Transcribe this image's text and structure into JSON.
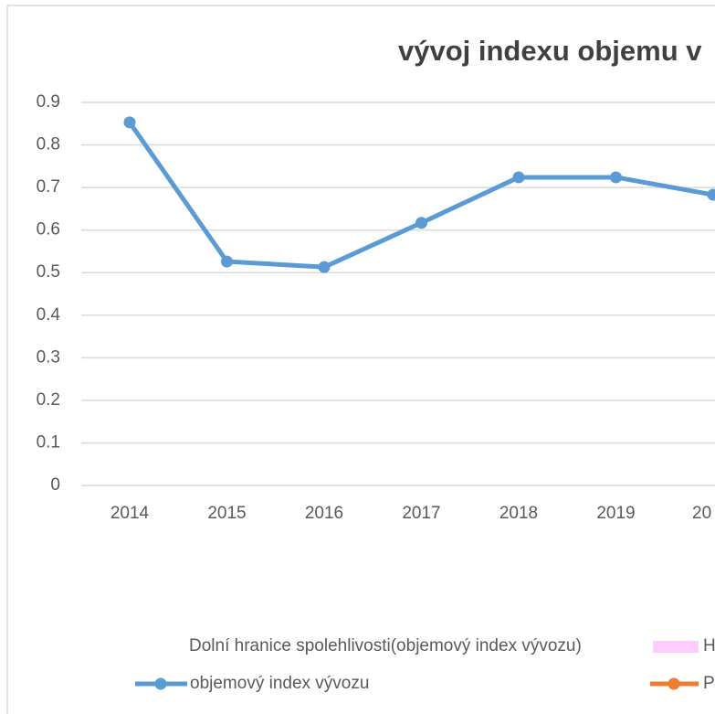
{
  "chart_data": {
    "type": "line",
    "title": "vývoj indexu objemu v",
    "categories": [
      "2014",
      "2015",
      "2016",
      "2017",
      "2018",
      "2019",
      "20"
    ],
    "series": [
      {
        "name": "objemový index vývozu",
        "color": "#5b9bd5",
        "values": [
          0.853,
          0.526,
          0.513,
          0.617,
          0.724,
          0.724,
          0.683
        ]
      }
    ],
    "legend": [
      {
        "name": "Dolní hranice spolehlivosti(objemový index vývozu)"
      },
      {
        "name": "H",
        "color": "#ffccff"
      },
      {
        "name": "P",
        "color": "#ed7d31"
      }
    ],
    "ylim": [
      0,
      0.9
    ],
    "yticks": [
      0,
      0.1,
      0.2,
      0.3,
      0.4,
      0.5,
      0.6,
      0.7,
      0.8,
      0.9
    ],
    "grid": true
  }
}
